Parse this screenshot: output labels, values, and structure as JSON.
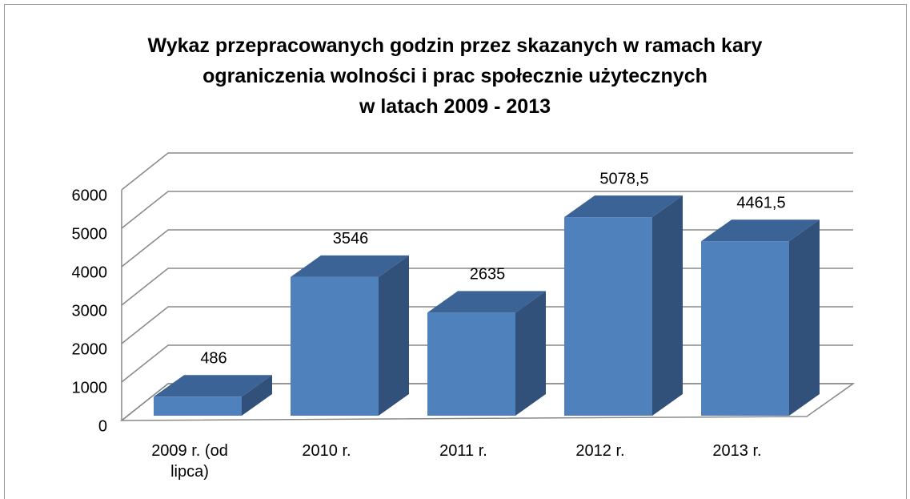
{
  "chart_data": {
    "type": "bar3d",
    "title": "Wykaz przepracowanych godzin przez skazanych w ramach kary\nograniczenia wolności i prac społecznie użytecznych\nw latach 2009 - 2013",
    "categories": [
      "2009 r. (od lipca)",
      "2010 r.",
      "2011 r.",
      "2012 r.",
      "2013 r."
    ],
    "values": [
      486,
      3546,
      2635,
      5078.5,
      4461.5
    ],
    "value_labels": [
      "486",
      "3546",
      "2635",
      "5078,5",
      "4461,5"
    ],
    "color": "#4f81bd",
    "ylim": [
      0,
      6000
    ],
    "yticks": [
      0,
      1000,
      2000,
      3000,
      4000,
      5000,
      6000
    ],
    "grid": true
  }
}
